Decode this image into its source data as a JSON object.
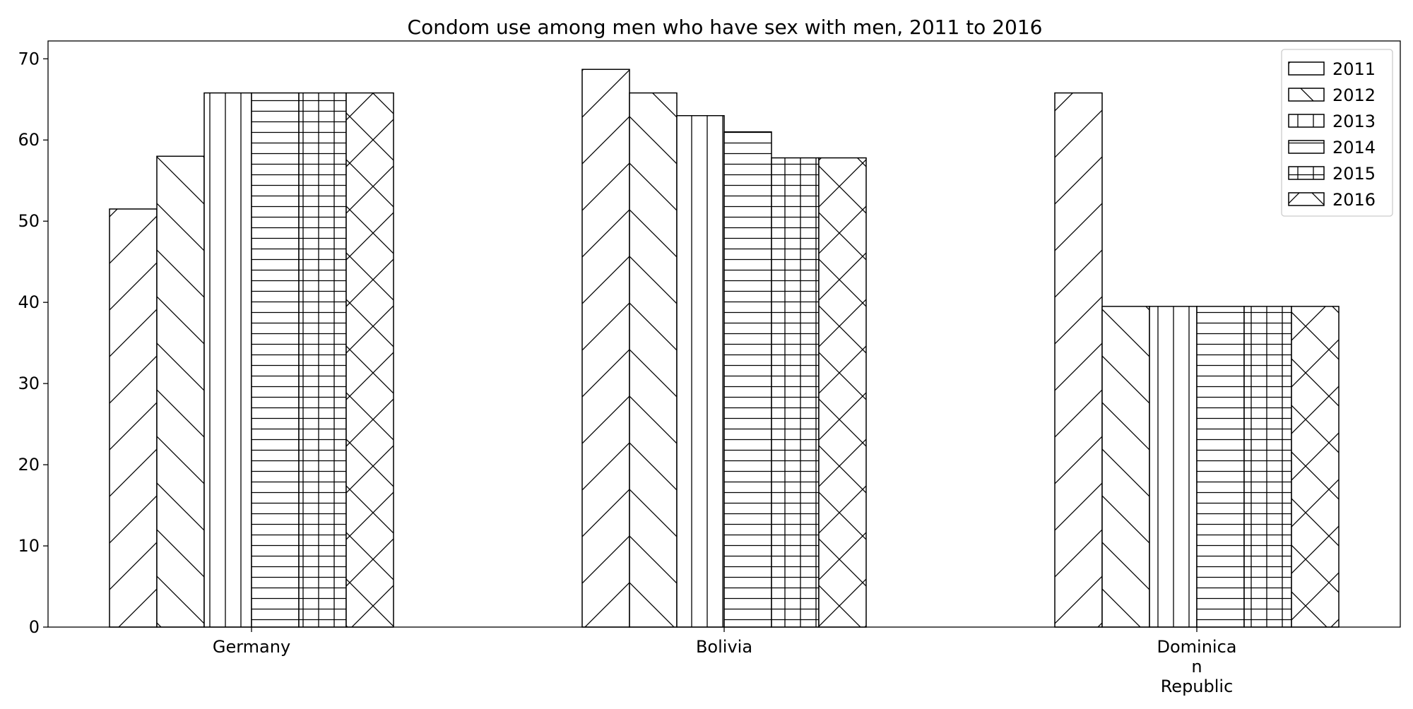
{
  "chart_data": {
    "type": "bar",
    "title": "Condom use among men who have sex with men, 2011 to 2016",
    "xlabel": "",
    "ylabel": "",
    "categories": [
      "Germany",
      "Bolivia",
      "Dominican Republic"
    ],
    "category_tick_lines": [
      [
        "Germany"
      ],
      [
        "Bolivia"
      ],
      [
        "Dominica",
        "n",
        "Republic"
      ]
    ],
    "series": [
      {
        "name": "2011",
        "values": [
          51.5,
          68.7,
          65.8
        ],
        "hatch": "diag-up"
      },
      {
        "name": "2012",
        "values": [
          58.0,
          65.8,
          39.5
        ],
        "hatch": "diag-down"
      },
      {
        "name": "2013",
        "values": [
          65.8,
          63.0,
          39.5
        ],
        "hatch": "vertical"
      },
      {
        "name": "2014",
        "values": [
          65.8,
          61.0,
          39.5
        ],
        "hatch": "horizontal"
      },
      {
        "name": "2015",
        "values": [
          65.8,
          57.8,
          39.5
        ],
        "hatch": "grid"
      },
      {
        "name": "2016",
        "values": [
          65.8,
          57.8,
          39.5
        ],
        "hatch": "cross"
      }
    ],
    "ylim": [
      0,
      72.2
    ],
    "yticks": [
      0,
      10,
      20,
      30,
      40,
      50,
      60,
      70
    ],
    "grid": false,
    "legend_position": "top-right",
    "bar_fill": "#ffffff",
    "bar_edge": "#000000"
  }
}
